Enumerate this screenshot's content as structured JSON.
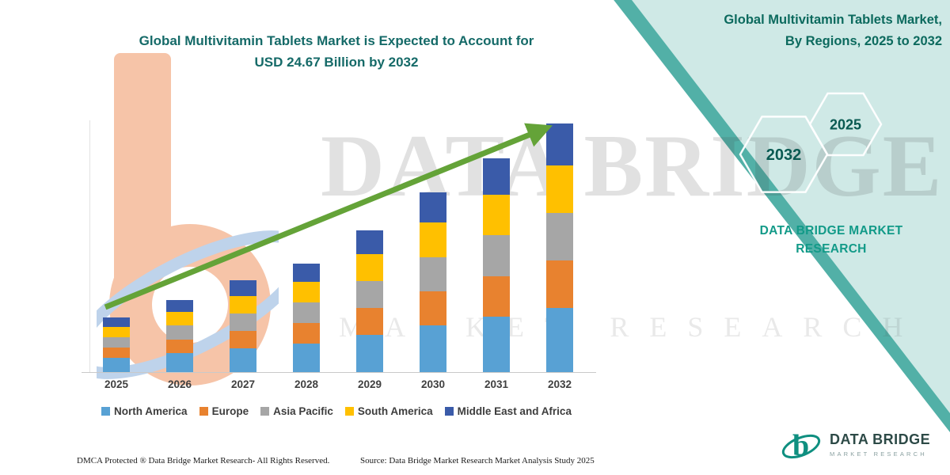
{
  "page": {
    "teal_band_color": "#cfe9e6",
    "teal_edge_color": "#52b0a7",
    "arrow_color": "#64a338"
  },
  "main_title": {
    "line1": "Global Multivitamin Tablets Market is Expected to Account for",
    "line2": "USD 24.67 Billion by 2032"
  },
  "side_panel": {
    "title_line1": "Global Multivitamin Tablets Market,",
    "title_line2": "By Regions, 2025 to 2032",
    "hexagon_left": "2032",
    "hexagon_right": "2025",
    "brand_line1": "DATA BRIDGE MARKET",
    "brand_line2": "RESEARCH"
  },
  "watermark": {
    "line1": "DATA BRIDGE",
    "line2": "MARKET RESEARCH"
  },
  "footer": {
    "dmca": "DMCA Protected ® Data Bridge Market Research-  All Rights Reserved.",
    "source": "Source: Data Bridge Market Research  Market Analysis Study 2025"
  },
  "logo": {
    "glyph": "b",
    "name": "DATA BRIDGE",
    "tagline": "MARKET RESEARCH"
  },
  "chart_data": {
    "type": "bar",
    "stacked": true,
    "title": "Global Multivitamin Tablets Market is Expected to Account for USD 24.67 Billion by 2032",
    "unit": "USD Billion",
    "categories": [
      "2025",
      "2026",
      "2027",
      "2028",
      "2029",
      "2030",
      "2031",
      "2032"
    ],
    "series": [
      {
        "name": "North America",
        "color": "#58A1D4",
        "values": [
          1.4,
          1.87,
          2.37,
          2.81,
          3.67,
          4.65,
          5.51,
          6.41
        ]
      },
      {
        "name": "Europe",
        "color": "#E8822F",
        "values": [
          1.03,
          1.37,
          1.73,
          2.05,
          2.68,
          3.4,
          4.03,
          4.69
        ]
      },
      {
        "name": "Asia Pacific",
        "color": "#A6A6A6",
        "values": [
          1.03,
          1.37,
          1.73,
          2.05,
          2.68,
          3.4,
          4.03,
          4.69
        ]
      },
      {
        "name": "South America",
        "color": "#FFC000",
        "values": [
          1.03,
          1.37,
          1.73,
          2.05,
          2.68,
          3.4,
          4.03,
          4.69
        ]
      },
      {
        "name": "Middle East and Africa",
        "color": "#3A5BA9",
        "values": [
          0.92,
          1.22,
          1.55,
          1.84,
          2.4,
          3.04,
          3.6,
          4.19
        ]
      }
    ],
    "totals": [
      5.41,
      7.2,
      9.11,
      10.8,
      14.11,
      17.89,
      21.2,
      24.67
    ],
    "ylim": [
      0,
      25
    ],
    "grid": false,
    "legend_position": "bottom",
    "trend_arrow": true
  }
}
